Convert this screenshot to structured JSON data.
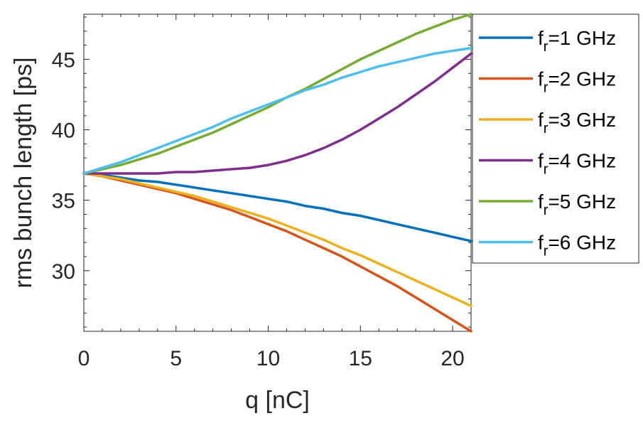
{
  "chart_data": {
    "type": "line",
    "xlabel": "q [nC]",
    "ylabel": "rms bunch length [ps]",
    "xlim": [
      0,
      21
    ],
    "ylim": [
      25.7,
      48.2
    ],
    "xticks": [
      0,
      5,
      10,
      15,
      20
    ],
    "yticks": [
      30,
      35,
      40,
      45
    ],
    "x": [
      0,
      1,
      2,
      3,
      4,
      5,
      6,
      7,
      8,
      9,
      10,
      11,
      12,
      13,
      14,
      15,
      16,
      17,
      18,
      19,
      20,
      21
    ],
    "series": [
      {
        "name": "f",
        "subscript": "r",
        "label_suffix": "=1 GHz",
        "color": "#0072BD",
        "values": [
          36.9,
          36.8,
          36.6,
          36.4,
          36.3,
          36.1,
          35.9,
          35.7,
          35.5,
          35.3,
          35.1,
          34.9,
          34.6,
          34.4,
          34.1,
          33.9,
          33.6,
          33.3,
          33.0,
          32.7,
          32.4,
          32.1
        ]
      },
      {
        "name": "f",
        "subscript": "r",
        "label_suffix": "=2 GHz",
        "color": "#D95319",
        "values": [
          36.9,
          36.7,
          36.4,
          36.1,
          35.8,
          35.5,
          35.1,
          34.7,
          34.3,
          33.8,
          33.3,
          32.8,
          32.2,
          31.6,
          31.0,
          30.3,
          29.6,
          28.9,
          28.1,
          27.3,
          26.5,
          25.7
        ]
      },
      {
        "name": "f",
        "subscript": "r",
        "label_suffix": "=3 GHz",
        "color": "#EDB120",
        "values": [
          36.9,
          36.7,
          36.5,
          36.2,
          35.9,
          35.6,
          35.3,
          34.9,
          34.5,
          34.1,
          33.7,
          33.2,
          32.7,
          32.2,
          31.6,
          31.1,
          30.5,
          29.9,
          29.3,
          28.7,
          28.1,
          27.5
        ]
      },
      {
        "name": "f",
        "subscript": "r",
        "label_suffix": "=4 GHz",
        "color": "#7E2F8E",
        "values": [
          36.9,
          36.9,
          36.9,
          36.9,
          36.9,
          37.0,
          37.0,
          37.1,
          37.2,
          37.3,
          37.5,
          37.8,
          38.2,
          38.7,
          39.3,
          40.0,
          40.8,
          41.6,
          42.5,
          43.4,
          44.4,
          45.4
        ]
      },
      {
        "name": "f",
        "subscript": "r",
        "label_suffix": "=5 GHz",
        "color": "#77AC30",
        "values": [
          36.9,
          37.2,
          37.5,
          37.9,
          38.3,
          38.8,
          39.3,
          39.8,
          40.4,
          41.0,
          41.6,
          42.3,
          42.9,
          43.6,
          44.3,
          45.0,
          45.6,
          46.2,
          46.8,
          47.3,
          47.8,
          48.2
        ]
      },
      {
        "name": "f",
        "subscript": "r",
        "label_suffix": "=6 GHz",
        "color": "#4DBEEE",
        "values": [
          36.9,
          37.3,
          37.7,
          38.2,
          38.7,
          39.2,
          39.7,
          40.2,
          40.8,
          41.3,
          41.8,
          42.3,
          42.8,
          43.2,
          43.7,
          44.1,
          44.5,
          44.8,
          45.1,
          45.4,
          45.6,
          45.8
        ]
      }
    ]
  }
}
